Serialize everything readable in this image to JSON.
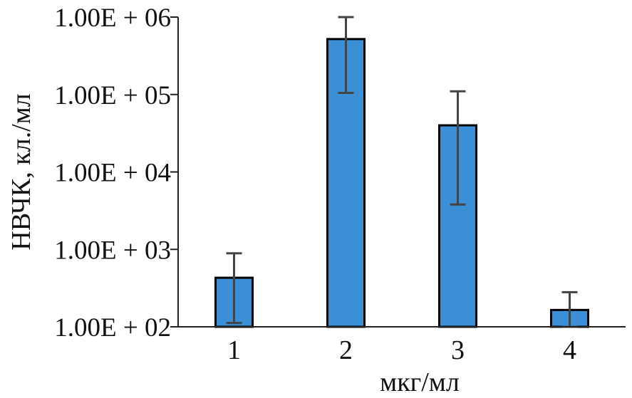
{
  "chart_data": {
    "type": "bar",
    "title": "",
    "xlabel": "мкг/мл",
    "ylabel": "НВЧК, кл./мл",
    "y_scale": "log10",
    "ylim": [
      100,
      1000000
    ],
    "yticks": [
      100,
      1000,
      10000,
      100000,
      1000000
    ],
    "ytick_labels": [
      "1.00E + 02",
      "1.00E + 03",
      "1.00E + 04",
      "1.00E + 05",
      "1.00E + 06"
    ],
    "categories": [
      "1",
      "2",
      "3",
      "4"
    ],
    "values": [
      430,
      520000,
      40000,
      165
    ],
    "error_low": [
      112,
      105000,
      3800,
      100
    ],
    "error_high": [
      890,
      1000000,
      110000,
      280
    ],
    "bar_color": "#3a8fd6",
    "bar_edge_color": "#000000",
    "error_bar_color": "#444444",
    "grid": false,
    "legend": "none"
  }
}
